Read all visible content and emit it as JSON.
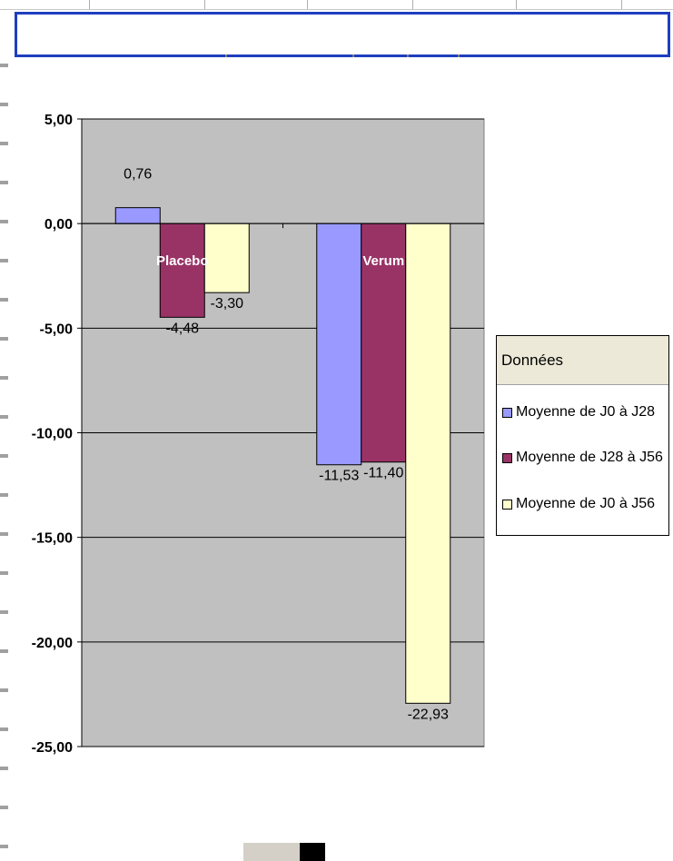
{
  "title": "",
  "chart_data": {
    "type": "bar",
    "categories": [
      "Placebo",
      "Verum"
    ],
    "series": [
      {
        "name": "Moyenne de J0 à J28",
        "values": [
          0.76,
          -11.53
        ],
        "labels": [
          "0,76",
          "-11,53"
        ],
        "color": "#9999ff"
      },
      {
        "name": "Moyenne de J28 à J56",
        "values": [
          -4.48,
          -11.4
        ],
        "labels": [
          "-4,48",
          "-11,40"
        ],
        "color": "#993366"
      },
      {
        "name": "Moyenne de J0 à J56",
        "values": [
          -3.3,
          -22.93
        ],
        "labels": [
          "-3,30",
          "-22,93"
        ],
        "color": "#ffffcc"
      }
    ],
    "ylim": [
      -25,
      5
    ],
    "yticks": [
      5,
      0,
      -5,
      -10,
      -15,
      -20,
      -25
    ],
    "ytick_labels": [
      "5,00",
      "0,00",
      "-5,00",
      "-10,00",
      "-15,00",
      "-20,00",
      "-25,00"
    ],
    "grid": true,
    "plot_background": "#c0c0c0",
    "legend": {
      "title": "Données",
      "placement": "right"
    }
  }
}
